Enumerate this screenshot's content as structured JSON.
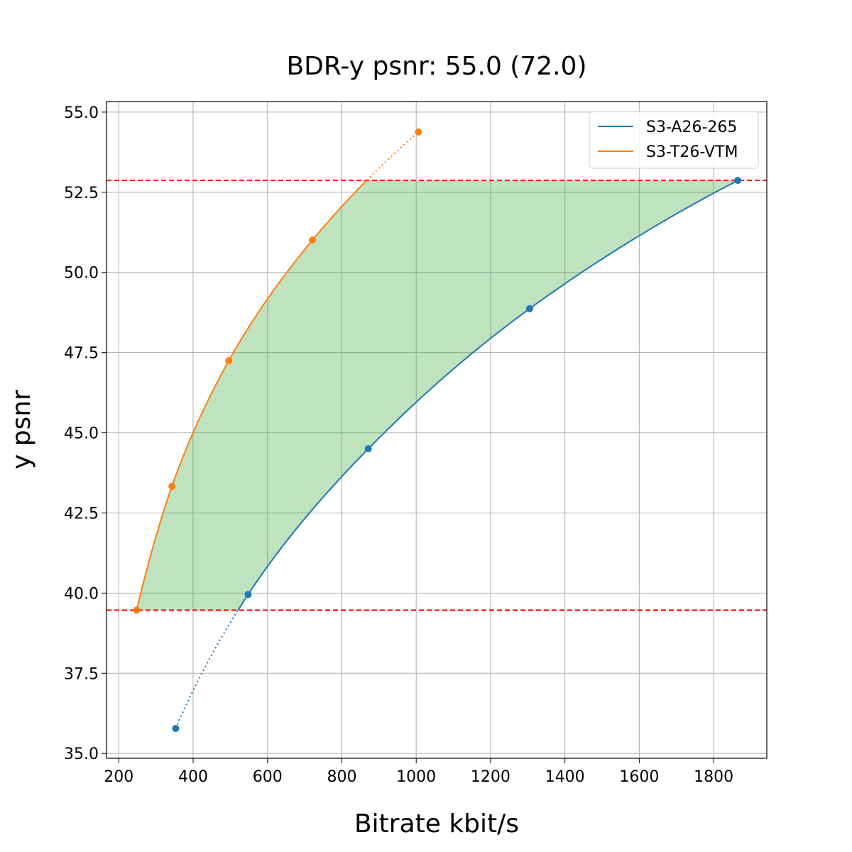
{
  "chart_data": {
    "type": "line",
    "title": "BDR-y psnr: 55.0 (72.0)",
    "xlabel": "Bitrate kbit/s",
    "ylabel": "y psnr",
    "xlim": [
      167,
      1943
    ],
    "ylim": [
      34.85,
      55.33
    ],
    "xticks": [
      200,
      400,
      600,
      800,
      1000,
      1200,
      1400,
      1600,
      1800
    ],
    "yticks": [
      35.0,
      37.5,
      40.0,
      42.5,
      45.0,
      47.5,
      50.0,
      52.5,
      55.0
    ],
    "grid": true,
    "legend_position": "top-right",
    "series": [
      {
        "name": "S3-A26-265",
        "color": "#1f77b4",
        "x": [
          353,
          548,
          871,
          1305,
          1865
        ],
        "y": [
          35.78,
          39.96,
          44.5,
          48.87,
          52.87
        ]
      },
      {
        "name": "S3-T26-VTM",
        "color": "#ff7f0e",
        "x": [
          248,
          343,
          496,
          721,
          1006
        ],
        "y": [
          39.47,
          43.33,
          47.25,
          51.01,
          54.38
        ]
      }
    ],
    "reference_lines": {
      "color": "#ff0000",
      "style": "dashed",
      "y": [
        39.47,
        52.87
      ]
    },
    "fill": {
      "color": "#2ca02c",
      "opacity": 0.3,
      "between_series": true
    }
  }
}
